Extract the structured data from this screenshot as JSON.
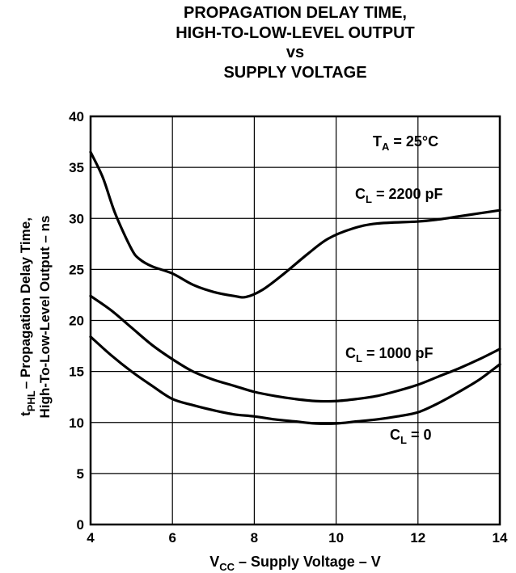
{
  "chart_data": {
    "type": "line",
    "title_lines": [
      "PROPAGATION DELAY TIME,",
      "HIGH-TO-LOW-LEVEL OUTPUT",
      "vs",
      "SUPPLY VOLTAGE"
    ],
    "xlabel": {
      "main": "V",
      "sub": "CC",
      "rest": " – Supply Voltage – V"
    },
    "ylabel": {
      "line1_prefix": "t",
      "line1_sub": "PHL",
      "line1_rest": "– Propagation Delay Time,",
      "line2": "High-To-Low-Level Output – ns"
    },
    "xlim": [
      4,
      14
    ],
    "ylim": [
      0,
      40
    ],
    "x_ticks": [
      4,
      6,
      8,
      10,
      12,
      14
    ],
    "y_ticks": [
      0,
      5,
      10,
      15,
      20,
      25,
      30,
      35,
      40
    ],
    "grid": true,
    "condition": {
      "main": "T",
      "sub": "A",
      "rest": " = 25°C"
    },
    "series": [
      {
        "name": {
          "main": "C",
          "sub": "L",
          "rest": " = 2200 pF"
        },
        "x": [
          4,
          4.3,
          4.6,
          5,
          5.2,
          5.5,
          6,
          6.5,
          7,
          7.5,
          7.8,
          8.2,
          8.7,
          9.3,
          9.8,
          10.4,
          11,
          12,
          12.5,
          13,
          13.5,
          14
        ],
        "y": [
          36.5,
          34,
          30.5,
          27,
          26,
          25.3,
          24.6,
          23.5,
          22.8,
          22.4,
          22.3,
          23,
          24.5,
          26.5,
          28,
          29,
          29.5,
          29.7,
          29.9,
          30.2,
          30.5,
          30.8
        ]
      },
      {
        "name": {
          "main": "C",
          "sub": "L",
          "rest": " = 1000 pF"
        },
        "x": [
          4,
          4.5,
          5,
          5.5,
          6,
          6.5,
          7,
          7.5,
          8,
          8.5,
          9,
          9.5,
          10,
          10.5,
          11,
          11.5,
          12,
          12.5,
          13,
          13.5,
          14
        ],
        "y": [
          22.4,
          21,
          19.3,
          17.6,
          16.2,
          15,
          14.2,
          13.6,
          13.0,
          12.6,
          12.3,
          12.1,
          12.1,
          12.3,
          12.6,
          13.1,
          13.7,
          14.5,
          15.3,
          16.2,
          17.2
        ]
      },
      {
        "name": {
          "main": "C",
          "sub": "L",
          "rest": " = 0"
        },
        "x": [
          4,
          4.5,
          5,
          5.5,
          6,
          6.5,
          7,
          7.5,
          8,
          8.5,
          9,
          9.5,
          10,
          10.5,
          11,
          11.5,
          12,
          12.5,
          13,
          13.5,
          14
        ],
        "y": [
          18.4,
          16.6,
          15.0,
          13.6,
          12.3,
          11.7,
          11.2,
          10.8,
          10.6,
          10.3,
          10.1,
          9.9,
          9.9,
          10.1,
          10.3,
          10.6,
          11.0,
          11.9,
          13.0,
          14.2,
          15.7
        ]
      }
    ]
  }
}
